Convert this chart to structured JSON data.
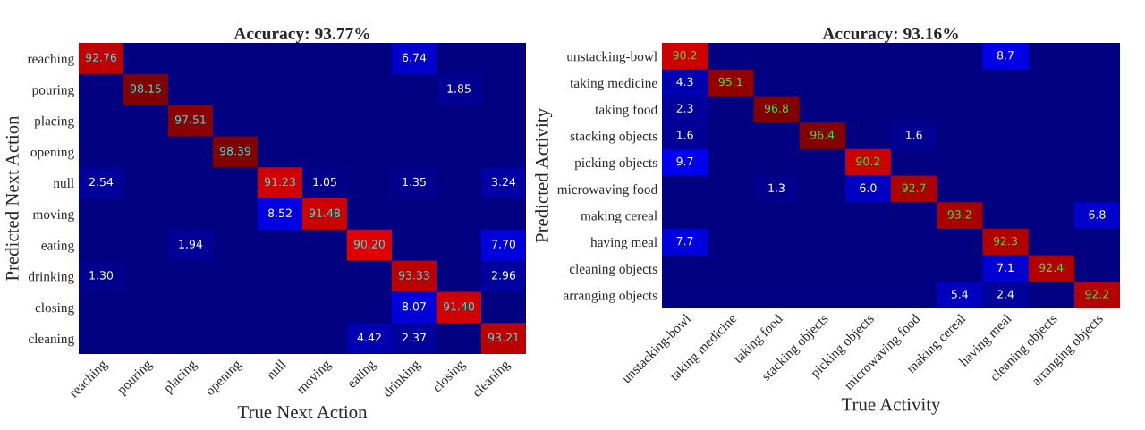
{
  "chart_data": [
    {
      "type": "heatmap",
      "title": "Accuracy: 93.77%",
      "xlabel": "True Next Action",
      "ylabel": "Predicted Next Action",
      "data_labels": true,
      "categories": [
        "reaching",
        "pouring",
        "placing",
        "opening",
        "null",
        "moving",
        "eating",
        "drinking",
        "closing",
        "cleaning"
      ],
      "y_categories": [
        "reaching",
        "pouring",
        "placing",
        "opening",
        "null",
        "moving",
        "eating",
        "drinking",
        "closing",
        "cleaning"
      ],
      "cells": [
        [
          92.76,
          null,
          null,
          null,
          null,
          null,
          null,
          6.74,
          null,
          null
        ],
        [
          null,
          98.15,
          null,
          null,
          null,
          null,
          null,
          null,
          1.85,
          null
        ],
        [
          null,
          null,
          97.51,
          null,
          null,
          null,
          null,
          null,
          null,
          null
        ],
        [
          null,
          null,
          null,
          98.39,
          null,
          null,
          null,
          null,
          null,
          null
        ],
        [
          2.54,
          null,
          null,
          null,
          91.23,
          1.05,
          null,
          1.35,
          null,
          3.24
        ],
        [
          null,
          null,
          null,
          null,
          8.52,
          91.48,
          null,
          null,
          null,
          null
        ],
        [
          null,
          null,
          1.94,
          null,
          null,
          null,
          90.2,
          null,
          null,
          7.7
        ],
        [
          1.3,
          null,
          null,
          null,
          null,
          null,
          null,
          93.33,
          null,
          2.96
        ],
        [
          null,
          null,
          null,
          null,
          null,
          null,
          null,
          8.07,
          91.4,
          null
        ],
        [
          null,
          null,
          null,
          null,
          null,
          null,
          4.42,
          2.37,
          null,
          93.21
        ]
      ],
      "cell_labels": [
        [
          "92.76",
          null,
          null,
          null,
          null,
          null,
          null,
          "6.74",
          null,
          null
        ],
        [
          null,
          "98.15",
          null,
          null,
          null,
          null,
          null,
          null,
          "1.85",
          null
        ],
        [
          null,
          null,
          "97.51",
          null,
          null,
          null,
          null,
          null,
          null,
          null
        ],
        [
          null,
          null,
          null,
          "98.39",
          null,
          null,
          null,
          null,
          null,
          null
        ],
        [
          "2.54",
          null,
          null,
          null,
          "91.23",
          "1.05",
          null,
          "1.35",
          null,
          "3.24"
        ],
        [
          null,
          null,
          null,
          null,
          "8.52",
          "91.48",
          null,
          null,
          null,
          null
        ],
        [
          null,
          null,
          "1.94",
          null,
          null,
          null,
          "90.20",
          null,
          null,
          "7.70"
        ],
        [
          "1.30",
          null,
          null,
          null,
          null,
          null,
          null,
          "93.33",
          null,
          "2.96"
        ],
        [
          null,
          null,
          null,
          null,
          null,
          null,
          null,
          "8.07",
          "91.40",
          null
        ],
        [
          null,
          null,
          null,
          null,
          null,
          null,
          "4.42",
          "2.37",
          null,
          "93.21"
        ]
      ]
    },
    {
      "type": "heatmap",
      "title": "Accuracy: 93.16%",
      "xlabel": "True Activity",
      "ylabel": "Predicted Activity",
      "data_labels": true,
      "cell_labels": [
        [
          "90.2",
          null,
          null,
          null,
          null,
          null,
          null,
          "8.7",
          null,
          null
        ],
        [
          "4.3",
          "95.1",
          null,
          null,
          null,
          null,
          null,
          null,
          null,
          null
        ],
        [
          "2.3",
          null,
          "96.8",
          null,
          null,
          null,
          null,
          null,
          null,
          null
        ],
        [
          "1.6",
          null,
          null,
          "96.4",
          null,
          "1.6",
          null,
          null,
          null,
          null
        ],
        [
          "9.7",
          null,
          null,
          null,
          "90.2",
          null,
          null,
          null,
          null,
          null
        ],
        [
          null,
          null,
          "1.3",
          null,
          "6.0",
          "92.7",
          null,
          null,
          null,
          null
        ],
        [
          null,
          null,
          null,
          null,
          null,
          null,
          "93.2",
          null,
          null,
          "6.8"
        ],
        [
          "7.7",
          null,
          null,
          null,
          null,
          null,
          null,
          "92.3",
          null,
          null
        ],
        [
          null,
          null,
          null,
          null,
          null,
          null,
          null,
          "7.1",
          "92.4",
          null
        ],
        [
          null,
          null,
          null,
          null,
          null,
          null,
          "5.4",
          "2.4",
          null,
          "92.2"
        ]
      ],
      "categories": [
        "unstacking-bowl",
        "taking medicine",
        "taking food",
        "stacking objects",
        "picking objects",
        "microwaving food",
        "making cereal",
        "having meal",
        "cleaning objects",
        "arranging objects"
      ],
      "y_categories": [
        "unstacking-bowl",
        "taking medicine",
        "taking food",
        "stacking objects",
        "picking objects",
        "microwaving food",
        "making cereal",
        "having meal",
        "cleaning objects",
        "arranging objects"
      ],
      "cells": [
        [
          90.2,
          null,
          null,
          null,
          null,
          null,
          null,
          8.7,
          null,
          null
        ],
        [
          4.3,
          95.1,
          null,
          null,
          null,
          null,
          null,
          null,
          null,
          null
        ],
        [
          2.3,
          null,
          96.8,
          null,
          null,
          null,
          null,
          null,
          null,
          null
        ],
        [
          1.6,
          null,
          null,
          96.4,
          null,
          1.6,
          null,
          null,
          null,
          null
        ],
        [
          9.7,
          null,
          null,
          null,
          90.2,
          null,
          null,
          null,
          null,
          null
        ],
        [
          null,
          null,
          1.3,
          null,
          6.0,
          92.7,
          null,
          null,
          null,
          null
        ],
        [
          null,
          null,
          null,
          null,
          null,
          null,
          93.2,
          null,
          null,
          6.8
        ],
        [
          7.7,
          null,
          null,
          null,
          null,
          null,
          null,
          92.3,
          null,
          null
        ],
        [
          null,
          null,
          null,
          null,
          null,
          null,
          null,
          7.1,
          92.4,
          null
        ],
        [
          null,
          null,
          null,
          null,
          null,
          null,
          5.4,
          2.4,
          null,
          92.2
        ]
      ]
    }
  ]
}
